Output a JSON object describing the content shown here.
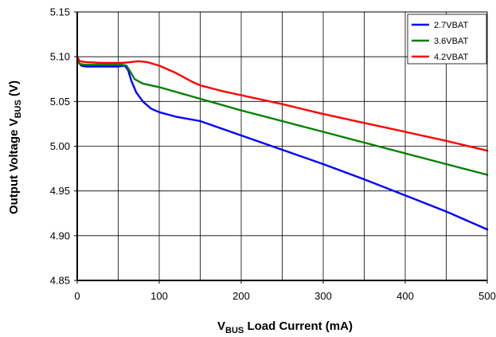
{
  "chart_data": {
    "type": "line",
    "xlabel_main": "V",
    "xlabel_sub": "BUS",
    "xlabel_rest": " Load Current (mA)",
    "ylabel_main": "Output Voltage V",
    "ylabel_sub": "BUS",
    "ylabel_rest": " (V)",
    "xlim": [
      0,
      500
    ],
    "ylim": [
      4.85,
      5.15
    ],
    "x_ticks": [
      "0",
      "100",
      "200",
      "300",
      "400",
      "500"
    ],
    "y_ticks": [
      "4.85",
      "4.90",
      "4.95",
      "5.00",
      "5.05",
      "5.10",
      "5.15"
    ],
    "grid": true,
    "x_grid_step": 50,
    "legend_position": "top-right",
    "series": [
      {
        "name": "2.7VBAT",
        "color": "#0000ff",
        "points": [
          [
            0,
            5.098
          ],
          [
            2,
            5.093
          ],
          [
            5,
            5.09
          ],
          [
            10,
            5.089
          ],
          [
            30,
            5.089
          ],
          [
            50,
            5.089
          ],
          [
            58,
            5.09
          ],
          [
            62,
            5.085
          ],
          [
            66,
            5.073
          ],
          [
            72,
            5.06
          ],
          [
            80,
            5.05
          ],
          [
            90,
            5.042
          ],
          [
            100,
            5.038
          ],
          [
            120,
            5.033
          ],
          [
            150,
            5.028
          ],
          [
            175,
            5.02
          ],
          [
            200,
            5.012
          ],
          [
            250,
            4.996
          ],
          [
            300,
            4.98
          ],
          [
            350,
            4.963
          ],
          [
            400,
            4.945
          ],
          [
            450,
            4.927
          ],
          [
            500,
            4.907
          ]
        ]
      },
      {
        "name": "3.6VBAT",
        "color": "#008000",
        "points": [
          [
            0,
            5.097
          ],
          [
            3,
            5.092
          ],
          [
            10,
            5.091
          ],
          [
            30,
            5.091
          ],
          [
            55,
            5.091
          ],
          [
            60,
            5.09
          ],
          [
            65,
            5.083
          ],
          [
            70,
            5.075
          ],
          [
            80,
            5.07
          ],
          [
            100,
            5.066
          ],
          [
            150,
            5.053
          ],
          [
            200,
            5.04
          ],
          [
            250,
            5.028
          ],
          [
            300,
            5.016
          ],
          [
            350,
            5.004
          ],
          [
            400,
            4.992
          ],
          [
            450,
            4.98
          ],
          [
            500,
            4.968
          ]
        ]
      },
      {
        "name": "4.2VBAT",
        "color": "#ff0000",
        "points": [
          [
            0,
            5.1
          ],
          [
            3,
            5.095
          ],
          [
            10,
            5.094
          ],
          [
            30,
            5.093
          ],
          [
            55,
            5.093
          ],
          [
            65,
            5.094
          ],
          [
            75,
            5.095
          ],
          [
            85,
            5.094
          ],
          [
            100,
            5.09
          ],
          [
            120,
            5.082
          ],
          [
            140,
            5.072
          ],
          [
            150,
            5.068
          ],
          [
            175,
            5.062
          ],
          [
            200,
            5.057
          ],
          [
            250,
            5.047
          ],
          [
            300,
            5.036
          ],
          [
            350,
            5.026
          ],
          [
            400,
            5.016
          ],
          [
            450,
            5.006
          ],
          [
            500,
            4.995
          ]
        ]
      }
    ]
  }
}
